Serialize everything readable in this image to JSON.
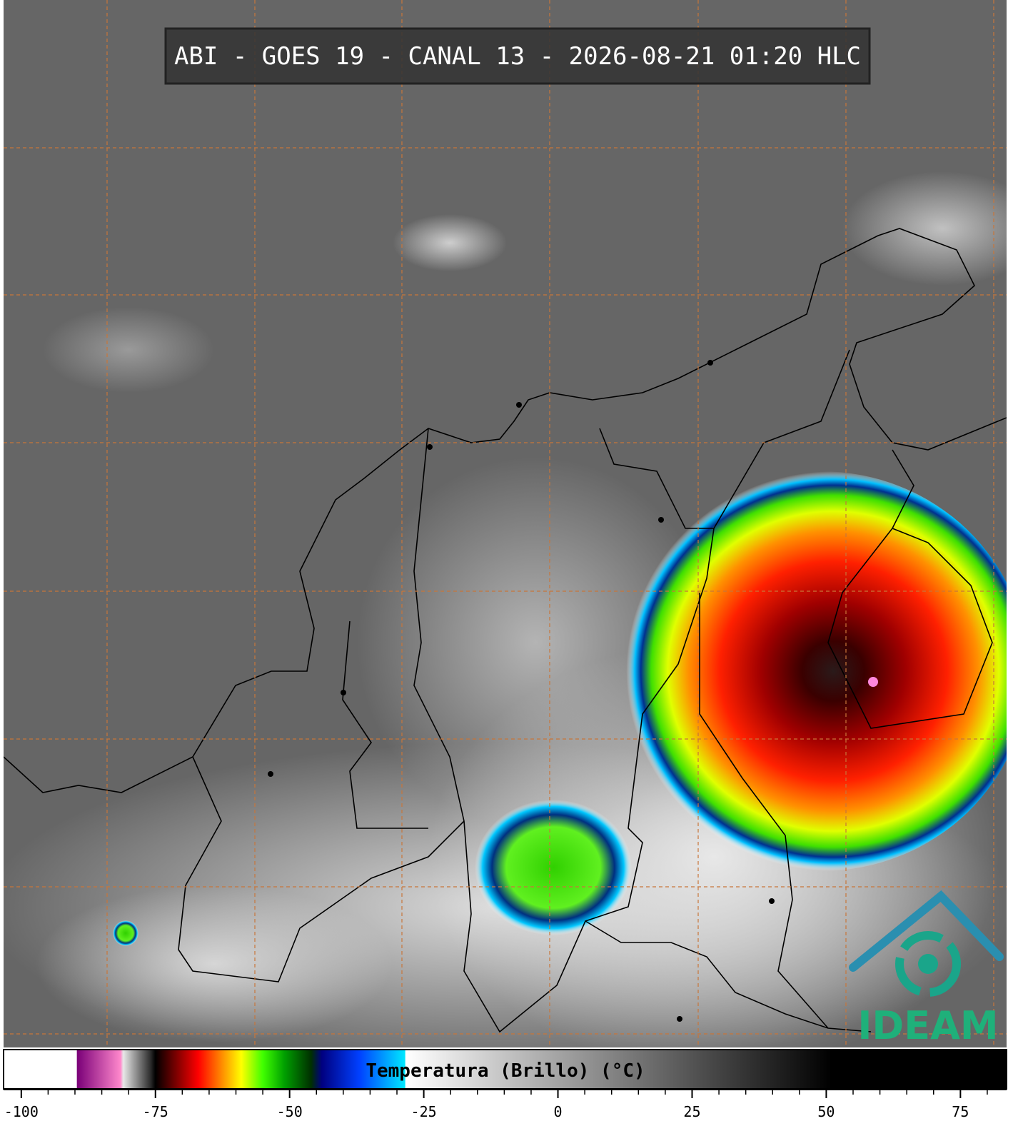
{
  "header": {
    "title": "ABI - GOES 19 - CANAL 13 - 2026-08-21 01:20 HLC"
  },
  "logo": {
    "text": "IDEAM"
  },
  "colorbar": {
    "label": "Temperatura (Brillo) (°C)",
    "lim": [
      -103.3,
      83.6
    ],
    "ticks": [
      -100,
      -75,
      -50,
      -25,
      0,
      25,
      50,
      75
    ],
    "minor_ticks": [
      -95,
      -90,
      -85,
      -80,
      -70,
      -65,
      -60,
      -55,
      -45,
      -40,
      -35,
      -30,
      -20,
      -15,
      -10,
      -5,
      5,
      10,
      15,
      20,
      30,
      35,
      40,
      45,
      55,
      60,
      65,
      70,
      80
    ],
    "stops": [
      [
        -103.3,
        "#ffffff"
      ],
      [
        -89.7,
        "#ffffff"
      ],
      [
        -89.6,
        "#7a0078"
      ],
      [
        -81.5,
        "#ff88cc"
      ],
      [
        -81,
        "#e8e8e8"
      ],
      [
        -76,
        "#303030"
      ],
      [
        -75,
        "#000000"
      ],
      [
        -72,
        "#600000"
      ],
      [
        -67,
        "#ff0000"
      ],
      [
        -63,
        "#ff8000"
      ],
      [
        -59,
        "#ffff00"
      ],
      [
        -55,
        "#40ff00"
      ],
      [
        -51,
        "#00a000"
      ],
      [
        -46,
        "#003000"
      ],
      [
        -44,
        "#000080"
      ],
      [
        -37,
        "#0040ff"
      ],
      [
        -28.5,
        "#00e8ff"
      ],
      [
        -28.4,
        "#ffffff"
      ],
      [
        51,
        "#000000"
      ],
      [
        83.6,
        "#000000"
      ]
    ]
  }
}
